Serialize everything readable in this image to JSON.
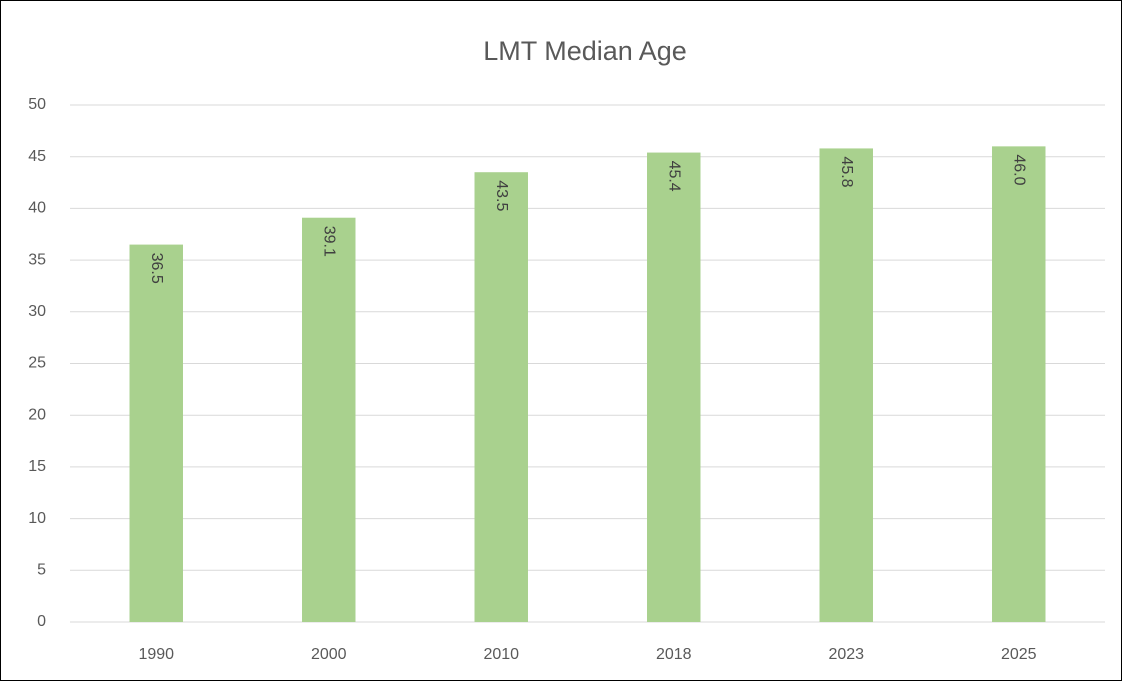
{
  "chart_data": {
    "type": "bar",
    "title": "LMT Median Age",
    "categories": [
      "1990",
      "2000",
      "2010",
      "2018",
      "2023",
      "2025"
    ],
    "values": [
      36.5,
      39.1,
      43.5,
      45.4,
      45.8,
      46
    ],
    "value_labels": [
      "36.5",
      "39.1",
      "43.5",
      "45.4",
      "45.8",
      "46.0"
    ],
    "color": "#a9d18e",
    "ylim": [
      0,
      50
    ],
    "yticks": [
      0,
      5,
      10,
      15,
      20,
      25,
      30,
      35,
      40,
      45,
      50
    ],
    "grid": true
  }
}
